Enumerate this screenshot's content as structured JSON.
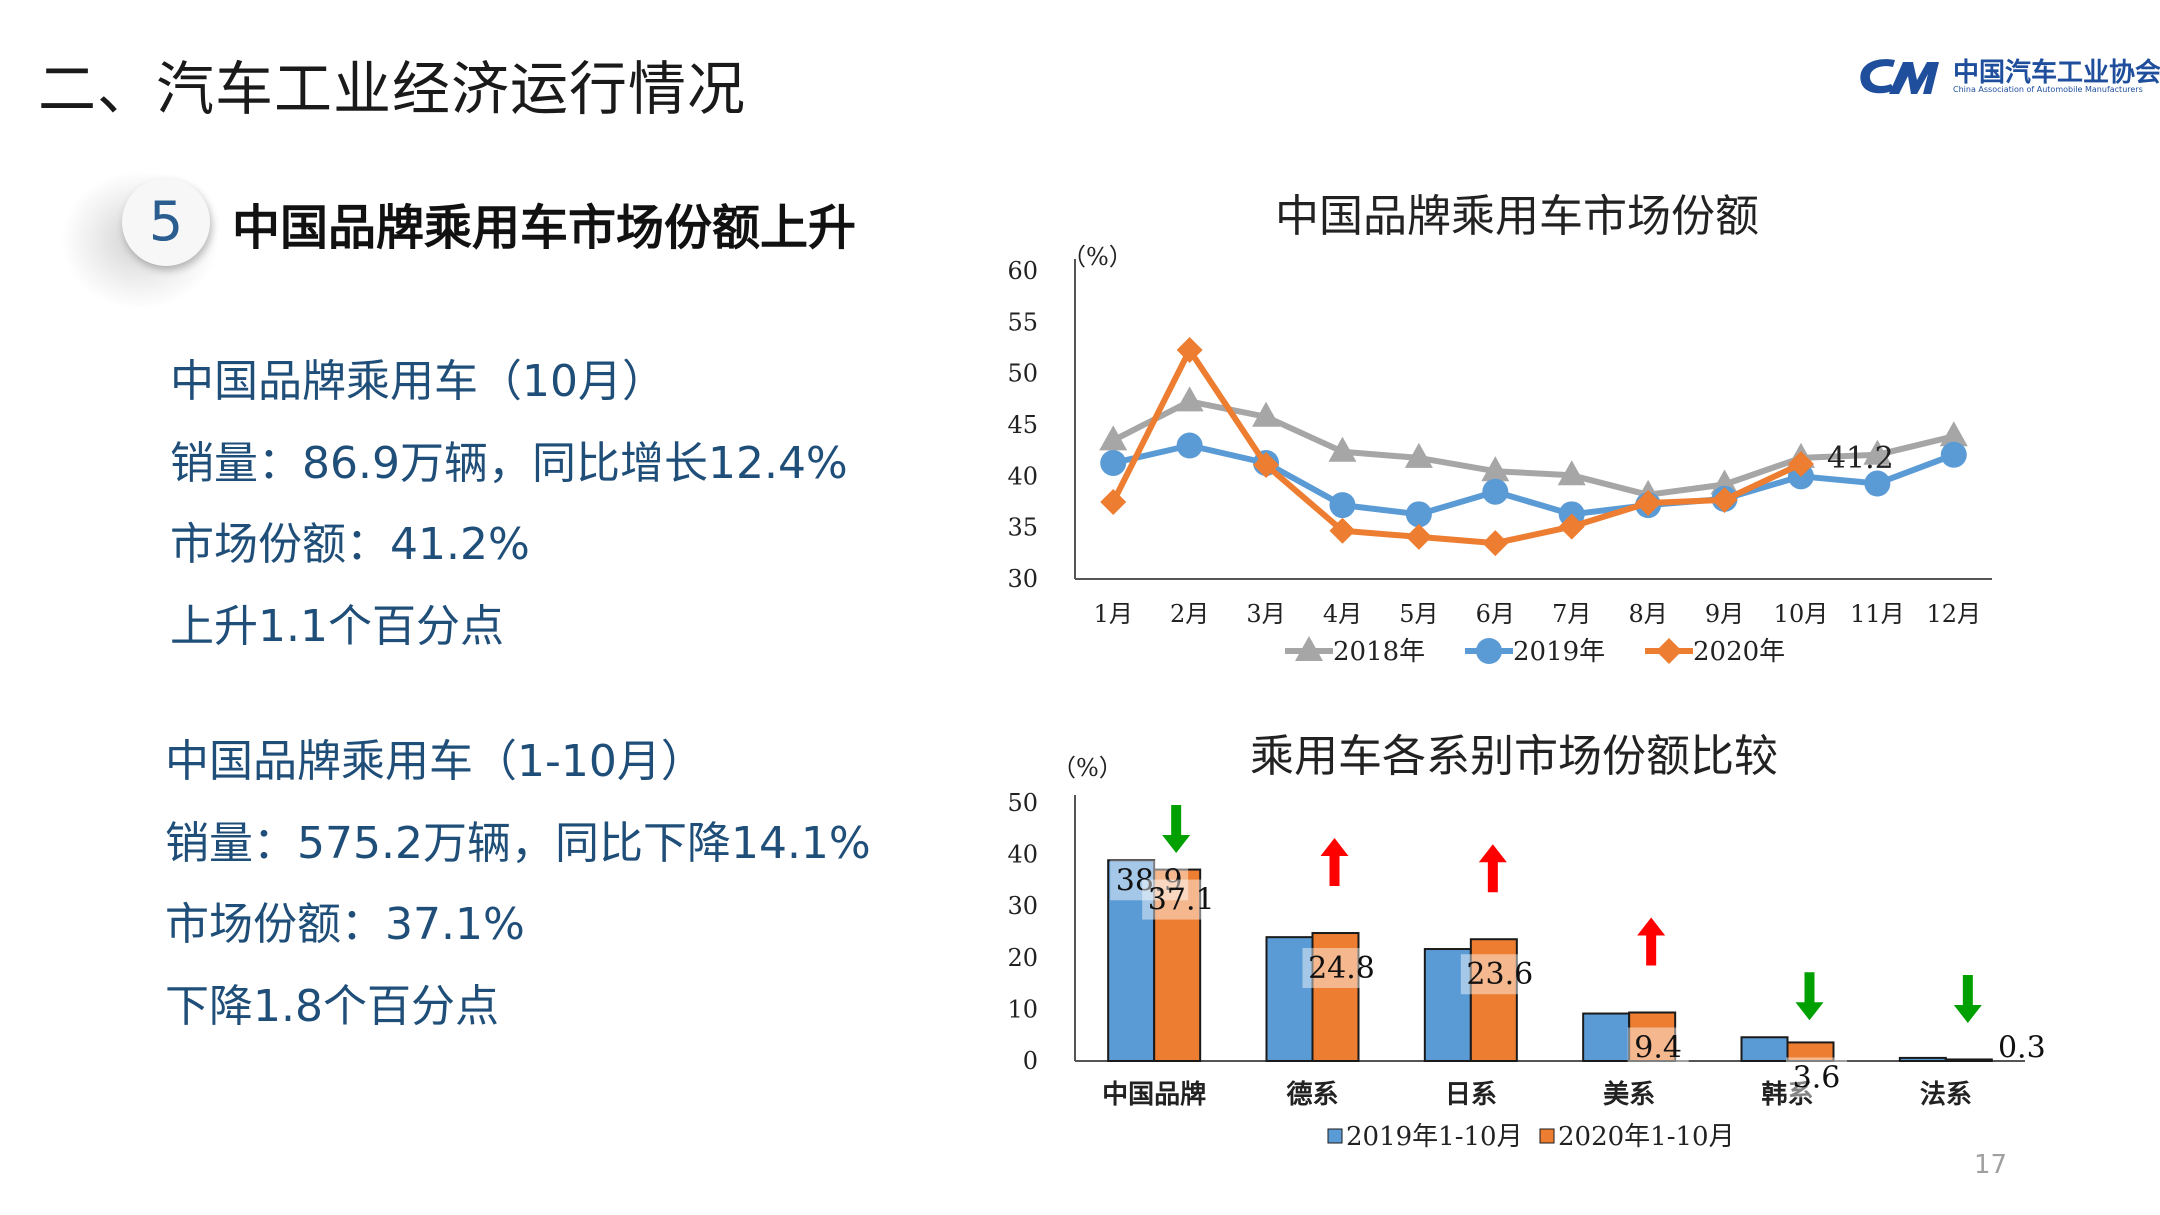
{
  "page": {
    "title": "二、汽车工业经济运行情况",
    "logo_cn": "中国汽车工业协会",
    "logo_en": "China Association of Automobile Manufacturers",
    "page_number": "17"
  },
  "section": {
    "number": "5",
    "heading": "中国品牌乘用车市场份额上升"
  },
  "left_text": {
    "block1": [
      "中国品牌乘用车（10月）",
      "销量：86.9万辆，同比增长12.4%",
      "市场份额：41.2%",
      "上升1.1个百分点"
    ],
    "block2": [
      "中国品牌乘用车（1-10月）",
      "销量：575.2万辆，同比下降14.1%",
      "市场份额：37.1%",
      "下降1.8个百分点"
    ]
  },
  "colors": {
    "s2018": "#a6a6a6",
    "s2019": "#5b9bd5",
    "s2020": "#ed7d31",
    "text_blue": "#1f4e79",
    "arrow_up": "#ff0000",
    "arrow_down": "#00a000"
  },
  "chart_data": [
    {
      "type": "line",
      "title": "中国品牌乘用车市场份额",
      "ylabel": "（%）",
      "ylim": [
        30,
        60
      ],
      "yticks": [
        30,
        35,
        40,
        45,
        50,
        55,
        60
      ],
      "categories": [
        "1月",
        "2月",
        "3月",
        "4月",
        "5月",
        "6月",
        "7月",
        "8月",
        "9月",
        "10月",
        "11月",
        "12月"
      ],
      "series": [
        {
          "name": "2018年",
          "marker": "triangle",
          "values": [
            43.5,
            47.3,
            45.8,
            42.4,
            41.8,
            40.5,
            40.1,
            38.2,
            39.2,
            41.8,
            42.1,
            43.9
          ]
        },
        {
          "name": "2019年",
          "marker": "circle",
          "values": [
            41.3,
            43.0,
            41.3,
            37.2,
            36.3,
            38.5,
            36.3,
            37.2,
            37.8,
            40.0,
            39.3,
            42.1
          ]
        },
        {
          "name": "2020年",
          "marker": "diamond",
          "values": [
            37.5,
            52.3,
            41.1,
            34.7,
            34.1,
            33.5,
            35.1,
            37.4,
            37.7,
            41.2,
            null,
            null
          ]
        }
      ],
      "annotations": [
        {
          "label": "41.2",
          "category": "10月",
          "series": "2020年"
        }
      ],
      "legend": "bottom",
      "grid": false
    },
    {
      "type": "bar",
      "title": "乘用车各系别市场份额比较",
      "ylabel": "（%）",
      "ylim": [
        0,
        50
      ],
      "yticks": [
        0,
        10,
        20,
        30,
        40,
        50
      ],
      "categories": [
        "中国品牌",
        "德系",
        "日系",
        "美系",
        "韩系",
        "法系"
      ],
      "series": [
        {
          "name": "2019年1-10月",
          "values": [
            38.9,
            24.0,
            21.7,
            9.2,
            4.6,
            0.6
          ]
        },
        {
          "name": "2020年1-10月",
          "values": [
            37.1,
            24.8,
            23.6,
            9.4,
            3.6,
            0.3
          ]
        }
      ],
      "data_labels": [
        {
          "category": "中国品牌",
          "series": "2019年1-10月",
          "label": "38.9"
        },
        {
          "category": "中国品牌",
          "series": "2020年1-10月",
          "label": "37.1"
        },
        {
          "category": "德系",
          "series": "2020年1-10月",
          "label": "24.8"
        },
        {
          "category": "日系",
          "series": "2020年1-10月",
          "label": "23.6"
        },
        {
          "category": "美系",
          "series": "2020年1-10月",
          "label": "9.4"
        },
        {
          "category": "韩系",
          "series": "2020年1-10月",
          "label": "3.6"
        },
        {
          "category": "法系",
          "series": "2020年1-10月",
          "label": "0.3"
        }
      ],
      "trend_arrows": [
        "down",
        "up",
        "up",
        "up",
        "down",
        "down"
      ],
      "legend": "bottom",
      "grid": false
    }
  ]
}
